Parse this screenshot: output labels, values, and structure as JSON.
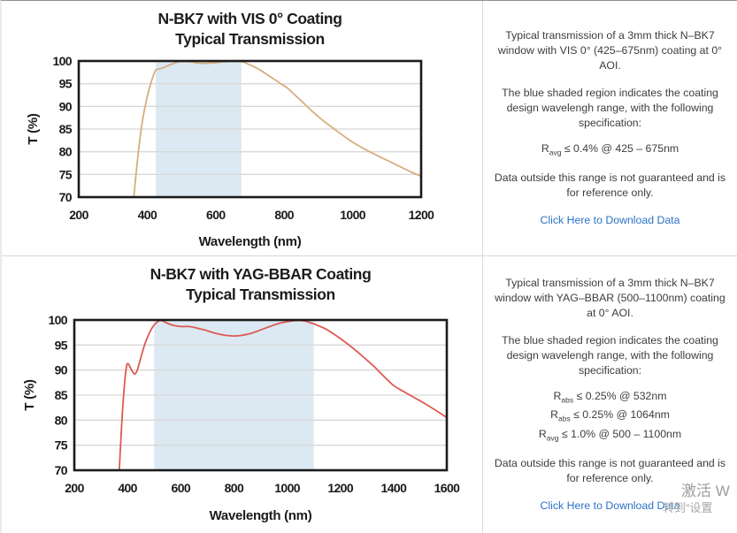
{
  "colors": {
    "band": "#dce9f3",
    "grid": "#d8d8d8",
    "axis": "#1b1b1b",
    "vis_line": "#d6ae7e",
    "yag_line": "#dd5a52",
    "link": "#2b72c4",
    "title_text": "#1c1c1c",
    "body_text": "#3d3d3d"
  },
  "chart_data": [
    {
      "type": "line",
      "title": "N-BK7 with VIS 0° Coating",
      "subtitle": "Typical Transmission",
      "xlabel": "Wavelength (nm)",
      "ylabel": "T (%)",
      "xlim": [
        200,
        1200
      ],
      "ylim": [
        70,
        100
      ],
      "xticks": [
        200,
        400,
        600,
        800,
        1000,
        1200
      ],
      "yticks": [
        70,
        75,
        80,
        85,
        90,
        95,
        100
      ],
      "grid": "horizontal",
      "legend": "none",
      "band_nm": [
        425,
        675
      ],
      "series": [
        {
          "name": "typical-transmission",
          "color": "#d6ae7e",
          "points": [
            [
              361,
              70
            ],
            [
              366,
              74
            ],
            [
              372,
              78.5
            ],
            [
              379,
              83
            ],
            [
              386,
              86.8
            ],
            [
              394,
              90
            ],
            [
              402,
              92.8
            ],
            [
              410,
              95
            ],
            [
              418,
              96.8
            ],
            [
              425,
              98
            ],
            [
              433,
              98.2
            ],
            [
              442,
              98.4
            ],
            [
              452,
              98.7
            ],
            [
              465,
              99.1
            ],
            [
              478,
              99.5
            ],
            [
              492,
              99.8
            ],
            [
              510,
              99.9
            ],
            [
              530,
              99.8
            ],
            [
              552,
              99.5
            ],
            [
              572,
              99.5
            ],
            [
              595,
              99.6
            ],
            [
              620,
              99.8
            ],
            [
              645,
              99.9
            ],
            [
              665,
              99.9
            ],
            [
              680,
              99.8
            ],
            [
              695,
              99.3
            ],
            [
              710,
              98.8
            ],
            [
              730,
              98.0
            ],
            [
              750,
              97.0
            ],
            [
              770,
              96.0
            ],
            [
              790,
              95.0
            ],
            [
              810,
              94.0
            ],
            [
              830,
              92.6
            ],
            [
              850,
              91.2
            ],
            [
              875,
              89.4
            ],
            [
              900,
              87.7
            ],
            [
              925,
              86.2
            ],
            [
              950,
              84.8
            ],
            [
              975,
              83.4
            ],
            [
              1000,
              82.1
            ],
            [
              1030,
              80.8
            ],
            [
              1060,
              79.6
            ],
            [
              1090,
              78.5
            ],
            [
              1120,
              77.4
            ],
            [
              1150,
              76.3
            ],
            [
              1175,
              75.4
            ],
            [
              1200,
              74.6
            ]
          ]
        }
      ]
    },
    {
      "type": "line",
      "title": "N-BK7 with YAG-BBAR Coating",
      "subtitle": "Typical Transmission",
      "xlabel": "Wavelength (nm)",
      "ylabel": "T (%)",
      "xlim": [
        200,
        1600
      ],
      "ylim": [
        70,
        100
      ],
      "xticks": [
        200,
        400,
        600,
        800,
        1000,
        1200,
        1400,
        1600
      ],
      "yticks": [
        70,
        75,
        80,
        85,
        90,
        95,
        100
      ],
      "grid": "horizontal",
      "legend": "none",
      "band_nm": [
        500,
        1100
      ],
      "series": [
        {
          "name": "typical-transmission",
          "color": "#dd5a52",
          "points": [
            [
              369,
              70
            ],
            [
              373,
              74
            ],
            [
              377,
              78
            ],
            [
              382,
              82.5
            ],
            [
              387,
              86
            ],
            [
              392,
              89
            ],
            [
              397,
              90.9
            ],
            [
              401,
              91.3
            ],
            [
              407,
              90.9
            ],
            [
              414,
              90.1
            ],
            [
              421,
              89.5
            ],
            [
              428,
              89.2
            ],
            [
              436,
              89.9
            ],
            [
              445,
              91.5
            ],
            [
              455,
              93.4
            ],
            [
              466,
              95.3
            ],
            [
              478,
              96.9
            ],
            [
              490,
              98.2
            ],
            [
              502,
              99.1
            ],
            [
              514,
              99.7
            ],
            [
              526,
              99.9
            ],
            [
              540,
              99.6
            ],
            [
              556,
              99.2
            ],
            [
              575,
              98.9
            ],
            [
              600,
              98.7
            ],
            [
              630,
              98.7
            ],
            [
              660,
              98.4
            ],
            [
              690,
              98.0
            ],
            [
              720,
              97.5
            ],
            [
              750,
              97.1
            ],
            [
              775,
              96.9
            ],
            [
              800,
              96.8
            ],
            [
              825,
              96.9
            ],
            [
              855,
              97.2
            ],
            [
              885,
              97.7
            ],
            [
              915,
              98.3
            ],
            [
              945,
              98.9
            ],
            [
              975,
              99.4
            ],
            [
              1005,
              99.7
            ],
            [
              1035,
              99.9
            ],
            [
              1065,
              99.8
            ],
            [
              1090,
              99.4
            ],
            [
              1115,
              98.9
            ],
            [
              1145,
              98.2
            ],
            [
              1175,
              97.2
            ],
            [
              1205,
              96.1
            ],
            [
              1235,
              94.9
            ],
            [
              1265,
              93.6
            ],
            [
              1295,
              92.2
            ],
            [
              1325,
              90.8
            ],
            [
              1355,
              89.2
            ],
            [
              1380,
              87.9
            ],
            [
              1400,
              86.9
            ],
            [
              1425,
              86.1
            ],
            [
              1455,
              85.2
            ],
            [
              1485,
              84.3
            ],
            [
              1515,
              83.4
            ],
            [
              1545,
              82.4
            ],
            [
              1575,
              81.4
            ],
            [
              1600,
              80.5
            ]
          ]
        }
      ]
    }
  ],
  "panels": [
    {
      "p1": "Typical transmission of a 3mm thick N–BK7 window with VIS 0° (425–675nm) coating at 0° AOI.",
      "p2": "The blue shaded region indicates the coating design wavelengh range, with the following specification:",
      "specs": [
        {
          "base": "R",
          "sub": "avg",
          "rest": " ≤ 0.4% @ 425 – 675nm"
        }
      ],
      "p3": "Data outside this range is not guaranteed and is for reference only.",
      "link": "Click Here to Download Data"
    },
    {
      "p1": "Typical transmission of a 3mm thick N–BK7 window with YAG–BBAR (500–1100nm) coating at 0° AOI.",
      "p2": "The blue shaded region indicates the coating design wavelengh range, with the following specification:",
      "specs": [
        {
          "base": "R",
          "sub": "abs",
          "rest": " ≤ 0.25% @ 532nm"
        },
        {
          "base": "R",
          "sub": "abs",
          "rest": " ≤ 0.25% @ 1064nm"
        },
        {
          "base": "R",
          "sub": "avg",
          "rest": " ≤ 1.0% @ 500 – 1100nm"
        }
      ],
      "p3": "Data outside this range is not guaranteed and is for reference only.",
      "link": "Click Here to Download Data"
    }
  ],
  "watermark": {
    "line1": "激活 W",
    "line2": "转到“设置"
  }
}
